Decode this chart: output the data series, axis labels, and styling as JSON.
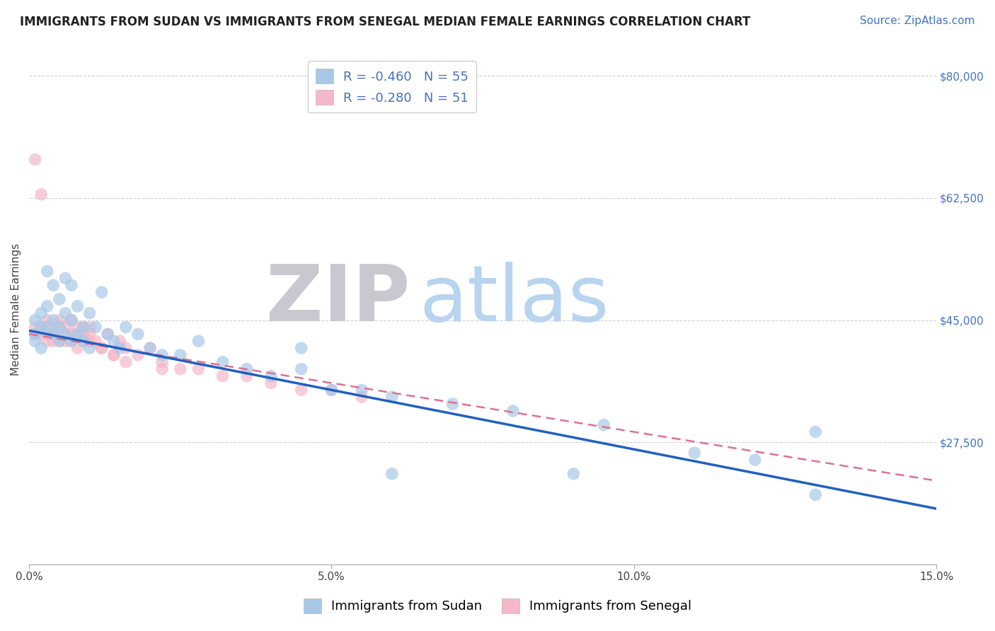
{
  "title": "IMMIGRANTS FROM SUDAN VS IMMIGRANTS FROM SENEGAL MEDIAN FEMALE EARNINGS CORRELATION CHART",
  "source": "Source: ZipAtlas.com",
  "ylabel": "Median Female Earnings",
  "legend_labels": [
    "Immigrants from Sudan",
    "Immigrants from Senegal"
  ],
  "legend_r": [
    -0.46,
    -0.28
  ],
  "legend_n": [
    55,
    51
  ],
  "blue_color": "#a8c8e8",
  "pink_color": "#f4b8c8",
  "blue_line_color": "#2060c0",
  "pink_line_color": "#e07090",
  "xlim": [
    0.0,
    0.15
  ],
  "ylim": [
    10000,
    83000
  ],
  "xtick_labels": [
    "0.0%",
    "5.0%",
    "10.0%",
    "15.0%"
  ],
  "xtick_values": [
    0.0,
    0.05,
    0.1,
    0.15
  ],
  "ytick_labels": [
    "$27,500",
    "$45,000",
    "$62,500",
    "$80,000"
  ],
  "ytick_values": [
    27500,
    45000,
    62500,
    80000
  ],
  "watermark_zip": "ZIP",
  "watermark_atlas": "atlas",
  "watermark_zip_color": "#c8c8d0",
  "watermark_atlas_color": "#b8d4f0",
  "background_color": "#ffffff",
  "grid_color": "#d0d0d8",
  "blue_scatter_x": [
    0.001,
    0.001,
    0.001,
    0.002,
    0.002,
    0.002,
    0.003,
    0.003,
    0.003,
    0.004,
    0.004,
    0.004,
    0.005,
    0.005,
    0.005,
    0.006,
    0.006,
    0.006,
    0.007,
    0.007,
    0.007,
    0.008,
    0.008,
    0.009,
    0.009,
    0.01,
    0.01,
    0.011,
    0.012,
    0.013,
    0.014,
    0.015,
    0.016,
    0.018,
    0.02,
    0.022,
    0.025,
    0.028,
    0.032,
    0.036,
    0.04,
    0.045,
    0.05,
    0.055,
    0.06,
    0.07,
    0.08,
    0.095,
    0.11,
    0.12,
    0.13,
    0.06,
    0.09,
    0.13,
    0.045
  ],
  "blue_scatter_y": [
    43000,
    45000,
    42000,
    44000,
    46000,
    41000,
    47000,
    52000,
    44000,
    43000,
    50000,
    45000,
    48000,
    42000,
    44000,
    46000,
    51000,
    43000,
    45000,
    42000,
    50000,
    47000,
    43000,
    44000,
    42000,
    46000,
    41000,
    44000,
    49000,
    43000,
    42000,
    41000,
    44000,
    43000,
    41000,
    40000,
    40000,
    42000,
    39000,
    38000,
    37000,
    38000,
    35000,
    35000,
    34000,
    33000,
    32000,
    30000,
    26000,
    25000,
    20000,
    23000,
    23000,
    29000,
    41000
  ],
  "pink_scatter_x": [
    0.001,
    0.001,
    0.002,
    0.002,
    0.003,
    0.003,
    0.004,
    0.004,
    0.005,
    0.005,
    0.006,
    0.006,
    0.007,
    0.007,
    0.008,
    0.008,
    0.009,
    0.009,
    0.01,
    0.01,
    0.011,
    0.012,
    0.013,
    0.014,
    0.015,
    0.016,
    0.018,
    0.02,
    0.022,
    0.025,
    0.028,
    0.032,
    0.036,
    0.04,
    0.045,
    0.05,
    0.055,
    0.002,
    0.003,
    0.004,
    0.005,
    0.006,
    0.007,
    0.008,
    0.009,
    0.01,
    0.012,
    0.014,
    0.001,
    0.016,
    0.022
  ],
  "pink_scatter_y": [
    44000,
    68000,
    63000,
    43000,
    42000,
    45000,
    44000,
    43000,
    42000,
    45000,
    44000,
    42000,
    43000,
    42000,
    44000,
    41000,
    43000,
    42000,
    44000,
    43000,
    42000,
    41000,
    43000,
    40000,
    42000,
    41000,
    40000,
    41000,
    39000,
    38000,
    38000,
    37000,
    37000,
    36000,
    35000,
    35000,
    34000,
    44000,
    43000,
    42000,
    44000,
    43000,
    45000,
    43000,
    44000,
    42000,
    41000,
    40000,
    43000,
    39000,
    38000
  ],
  "blue_line_y0": 43500,
  "blue_line_y1": 18000,
  "pink_line_y0": 43000,
  "pink_line_y1": 22000,
  "title_fontsize": 12,
  "axis_label_fontsize": 11,
  "tick_fontsize": 11,
  "legend_fontsize": 13,
  "source_fontsize": 11
}
